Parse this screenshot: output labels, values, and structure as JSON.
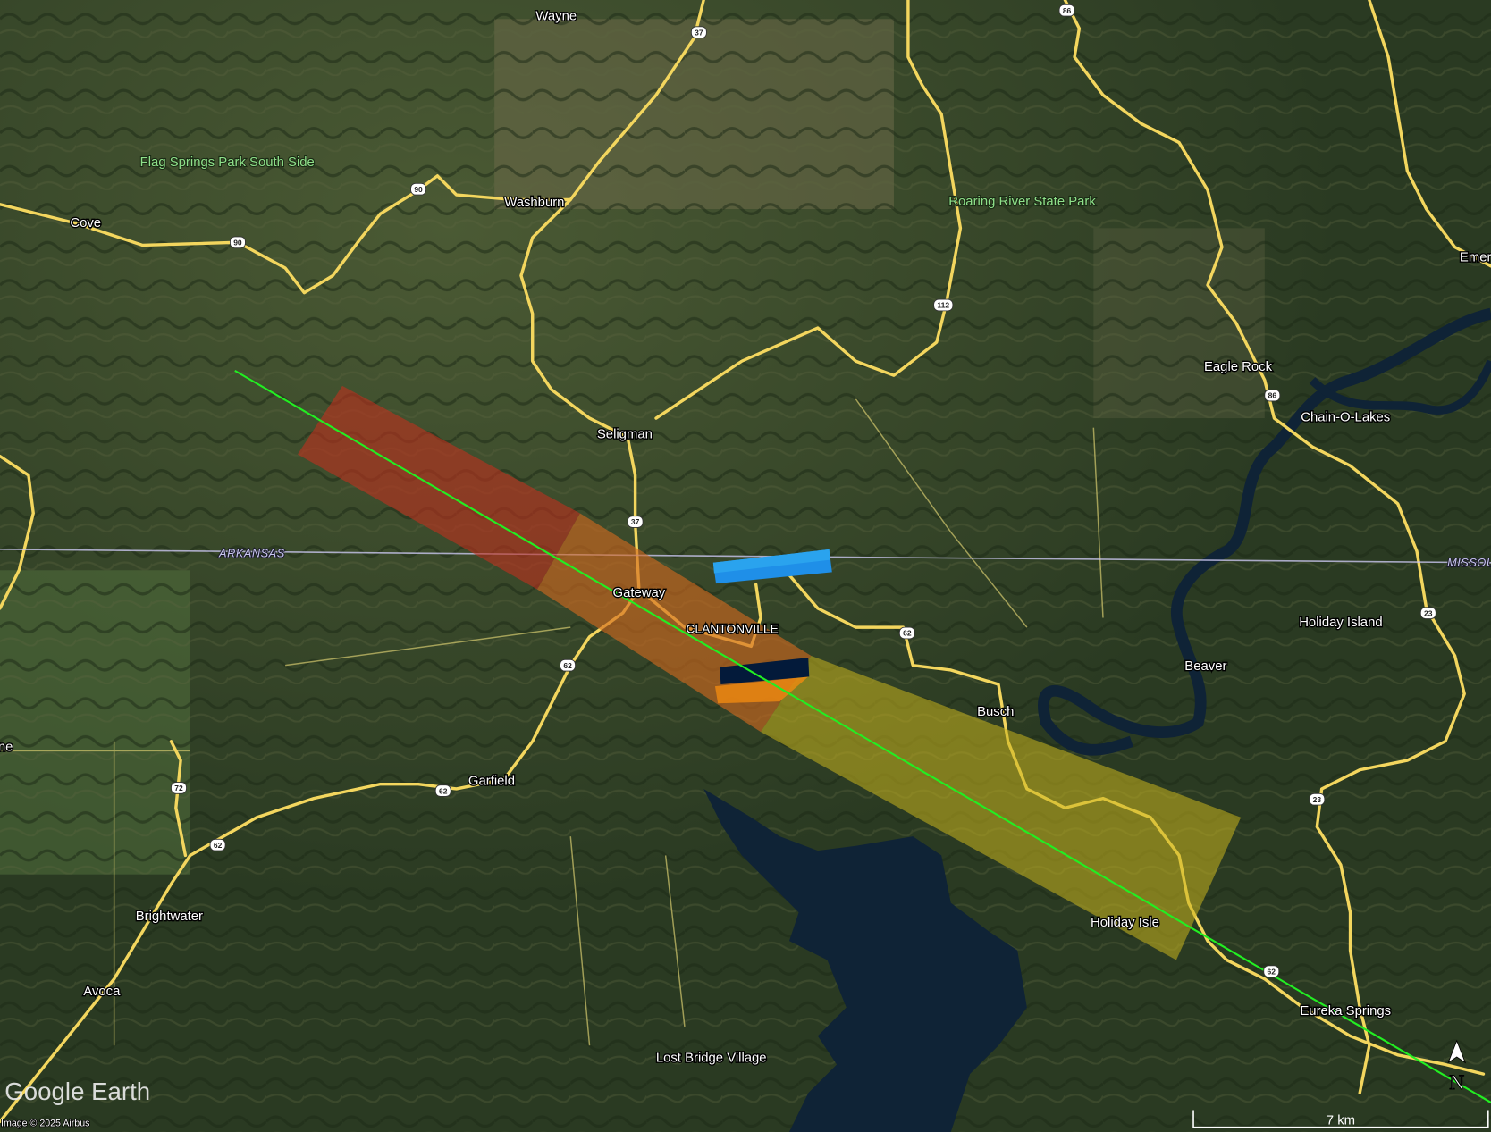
{
  "map": {
    "provider_logo": "Google Earth",
    "attribution": "Image © 2025 Airbus",
    "scale_bar_label": "7 km",
    "north_arrow_label": "N",
    "state_labels": [
      "ARKANSAS",
      "MISSOU"
    ],
    "places": [
      {
        "name": "Wayne",
        "kind": "town"
      },
      {
        "name": "Flag Springs Park South Side",
        "kind": "park"
      },
      {
        "name": "Washburn",
        "kind": "town"
      },
      {
        "name": "Cove",
        "kind": "town"
      },
      {
        "name": "Roaring River State Park",
        "kind": "park"
      },
      {
        "name": "Emer",
        "kind": "town"
      },
      {
        "name": "Eagle Rock",
        "kind": "town"
      },
      {
        "name": "Chain-O-Lakes",
        "kind": "town"
      },
      {
        "name": "Seligman",
        "kind": "town"
      },
      {
        "name": "Gateway",
        "kind": "town"
      },
      {
        "name": "CLANTONVILLE",
        "kind": "town"
      },
      {
        "name": "Holiday Island",
        "kind": "town"
      },
      {
        "name": "Beaver",
        "kind": "town"
      },
      {
        "name": "Busch",
        "kind": "town"
      },
      {
        "name": "Garfield",
        "kind": "town"
      },
      {
        "name": "ne",
        "kind": "town"
      },
      {
        "name": "Brightwater",
        "kind": "town"
      },
      {
        "name": "Holiday Isle",
        "kind": "town"
      },
      {
        "name": "Eureka Springs",
        "kind": "town"
      },
      {
        "name": "Avoca",
        "kind": "town"
      },
      {
        "name": "Lost Bridge Village",
        "kind": "town"
      }
    ],
    "route_shields": [
      "37",
      "86",
      "90",
      "90",
      "112",
      "86",
      "37",
      "62",
      "62",
      "23",
      "72",
      "62",
      "62",
      "23",
      "62"
    ],
    "overlays": {
      "swath_colors": [
        "#c0301e",
        "#d2691e",
        "#c8b41e"
      ],
      "track_line_color": "#22ee22",
      "blue_marker_color": "#1f8fe8",
      "dark_marker_color": "#031a3a"
    }
  }
}
